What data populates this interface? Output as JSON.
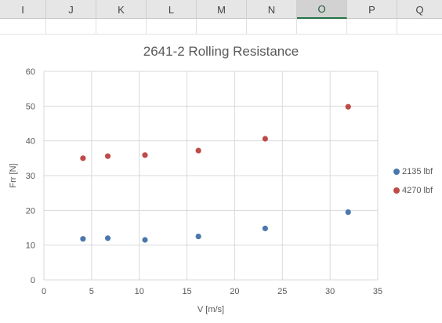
{
  "spreadsheet": {
    "columns": [
      "I",
      "J",
      "K",
      "L",
      "M",
      "N",
      "O",
      "P",
      "Q"
    ],
    "selected_column": "O",
    "accent_color": "#217346"
  },
  "chart_data": {
    "type": "scatter",
    "title": "2641-2 Rolling Resistance",
    "xlabel": "V [m/s]",
    "ylabel": "Frr [N]",
    "xlim": [
      0,
      35
    ],
    "ylim": [
      0,
      60
    ],
    "x_ticks": [
      0,
      5,
      10,
      15,
      20,
      25,
      30,
      35
    ],
    "y_ticks": [
      0,
      10,
      20,
      30,
      40,
      50,
      60
    ],
    "grid": true,
    "legend_position": "right",
    "series": [
      {
        "name": "2135 lbf",
        "color": "#4a78ad",
        "points": [
          {
            "x": 4.1,
            "y": 11.8
          },
          {
            "x": 6.7,
            "y": 12.0
          },
          {
            "x": 10.6,
            "y": 11.5
          },
          {
            "x": 16.2,
            "y": 12.5
          },
          {
            "x": 23.2,
            "y": 14.8
          },
          {
            "x": 31.9,
            "y": 19.5
          }
        ]
      },
      {
        "name": "4270 lbf",
        "color": "#be4b48",
        "points": [
          {
            "x": 4.1,
            "y": 35.0
          },
          {
            "x": 6.7,
            "y": 35.6
          },
          {
            "x": 10.6,
            "y": 35.9
          },
          {
            "x": 16.2,
            "y": 37.2
          },
          {
            "x": 23.2,
            "y": 40.6
          },
          {
            "x": 31.9,
            "y": 49.8
          }
        ]
      }
    ]
  }
}
